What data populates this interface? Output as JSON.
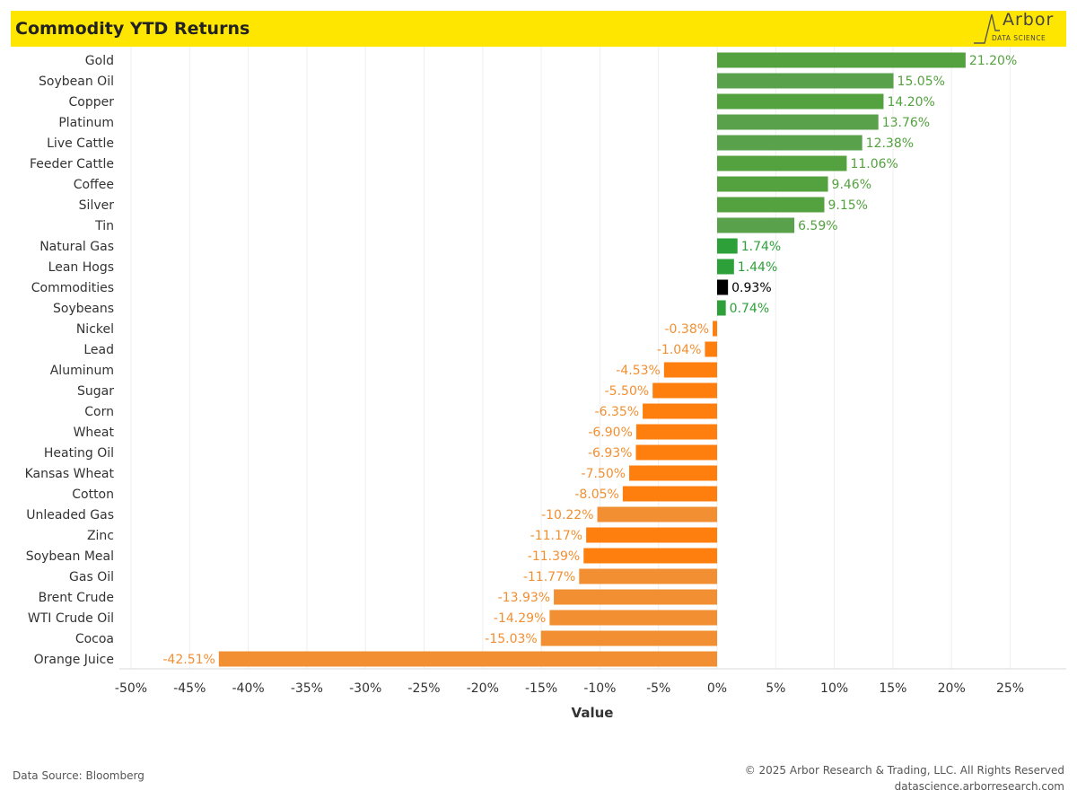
{
  "header": {
    "title": "Commodity YTD Returns",
    "logo_word": "Arbor",
    "logo_sub": "DATA SCIENCE",
    "logo_icon": "arbor-logo-icon"
  },
  "chart_data": {
    "type": "bar",
    "orientation": "horizontal",
    "title": "Commodity YTD Returns",
    "xlabel": "Value",
    "ylabel": "",
    "xlim": [
      -50,
      28
    ],
    "x_ticks": [
      "-50%",
      "-45%",
      "-40%",
      "-35%",
      "-30%",
      "-25%",
      "-20%",
      "-15%",
      "-10%",
      "-5%",
      "0%",
      "5%",
      "10%",
      "15%",
      "20%",
      "25%"
    ],
    "x_tick_values": [
      -50,
      -45,
      -40,
      -35,
      -30,
      -25,
      -20,
      -15,
      -10,
      -5,
      0,
      5,
      10,
      15,
      20,
      25
    ],
    "grid": "vertical",
    "categories": [
      "Gold",
      "Soybean Oil",
      "Copper",
      "Platinum",
      "Live Cattle",
      "Feeder Cattle",
      "Coffee",
      "Silver",
      "Tin",
      "Natural Gas",
      "Lean Hogs",
      "Commodities",
      "Soybeans",
      "Nickel",
      "Lead",
      "Aluminum",
      "Sugar",
      "Corn",
      "Wheat",
      "Heating Oil",
      "Kansas Wheat",
      "Cotton",
      "Unleaded Gas",
      "Zinc",
      "Soybean Meal",
      "Gas Oil",
      "Brent Crude",
      "WTI Crude Oil",
      "Cocoa",
      "Orange Juice"
    ],
    "values": [
      21.2,
      15.05,
      14.2,
      13.76,
      12.38,
      11.06,
      9.46,
      9.15,
      6.59,
      1.74,
      1.44,
      0.93,
      0.74,
      -0.38,
      -1.04,
      -4.53,
      -5.5,
      -6.35,
      -6.9,
      -6.93,
      -7.5,
      -8.05,
      -10.22,
      -11.17,
      -11.39,
      -11.77,
      -13.93,
      -14.29,
      -15.03,
      -42.51
    ],
    "labels": [
      "21.20%",
      "15.05%",
      "14.20%",
      "13.76%",
      "12.38%",
      "11.06%",
      "9.46%",
      "9.15%",
      "6.59%",
      "1.74%",
      "1.44%",
      "0.93%",
      "0.74%",
      "-0.38%",
      "-1.04%",
      "-4.53%",
      "-5.50%",
      "-6.35%",
      "-6.90%",
      "-6.93%",
      "-7.50%",
      "-8.05%",
      "-10.22%",
      "-11.17%",
      "-11.39%",
      "-11.77%",
      "-13.93%",
      "-14.29%",
      "-15.03%",
      "-42.51%"
    ],
    "colors": [
      "#54a13f",
      "#5aa14c",
      "#54a13f",
      "#5aa14c",
      "#5aa14c",
      "#54a13f",
      "#54a13f",
      "#54a13f",
      "#5aa14c",
      "#2ea03a",
      "#2ea03a",
      "#000000",
      "#2ea03a",
      "#ff7f0e",
      "#ff7f0e",
      "#ff7f0e",
      "#ff7f0e",
      "#ff7f0e",
      "#ff7f0e",
      "#ff7f0e",
      "#ff7f0e",
      "#ff7f0e",
      "#f28f32",
      "#ff7f0e",
      "#ff7f0e",
      "#f28f32",
      "#f28f32",
      "#f28f32",
      "#f28f32",
      "#f28f32"
    ],
    "label_colors": [
      "#54a13f",
      "#54a13f",
      "#54a13f",
      "#54a13f",
      "#54a13f",
      "#54a13f",
      "#54a13f",
      "#54a13f",
      "#54a13f",
      "#2ea03a",
      "#2ea03a",
      "#000000",
      "#2ea03a",
      "#f28f32",
      "#f28f32",
      "#f28f32",
      "#f28f32",
      "#f28f32",
      "#f28f32",
      "#f28f32",
      "#f28f32",
      "#f28f32",
      "#f28f32",
      "#f28f32",
      "#f28f32",
      "#f28f32",
      "#f28f32",
      "#f28f32",
      "#f28f32",
      "#f28f32"
    ]
  },
  "footer": {
    "source": "Data Source: Bloomberg",
    "copyright": "© 2025 Arbor Research & Trading, LLC. All Rights Reserved",
    "website": "datascience.arborresearch.com"
  }
}
